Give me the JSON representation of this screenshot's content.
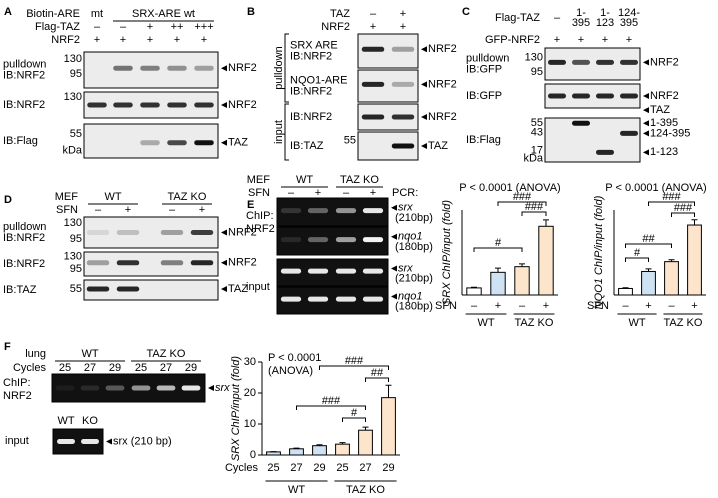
{
  "panels": {
    "a": {
      "label": "A",
      "rows": [
        {
          "name": "Biotin-ARE",
          "groups": [
            "mt",
            "SRX-ARE wt"
          ]
        },
        {
          "name": "Flag-TAZ",
          "lanes": [
            "–",
            "–",
            "+",
            "++",
            "+++"
          ]
        },
        {
          "name": "NRF2",
          "lanes": [
            "+",
            "+",
            "+",
            "+",
            "+"
          ]
        }
      ],
      "blots": [
        {
          "labels": [
            "pulldown",
            "IB:NRF2"
          ],
          "mw": [
            "130",
            "95"
          ],
          "marks": [
            "NRF2"
          ]
        },
        {
          "labels": [
            "IB:NRF2"
          ],
          "mw": [
            "130"
          ],
          "marks": [
            "NRF2"
          ]
        },
        {
          "labels": [
            "IB:Flag"
          ],
          "mw": [
            "55",
            "kDa"
          ],
          "marks": [
            "TAZ"
          ]
        }
      ]
    },
    "b": {
      "label": "B",
      "rows": [
        {
          "name": "TAZ",
          "lanes": [
            "–",
            "+"
          ]
        },
        {
          "name": "NRF2",
          "lanes": [
            "+",
            "+"
          ]
        }
      ],
      "side": [
        "pulldown",
        "input"
      ],
      "blots": [
        {
          "labels": [
            "SRX ARE",
            "IB:NRF2"
          ],
          "marks": [
            "NRF2"
          ]
        },
        {
          "labels": [
            "NQO1-ARE",
            "IB:NRF2"
          ],
          "marks": [
            "NRF2"
          ]
        },
        {
          "labels": [
            "IB:NRF2"
          ],
          "marks": [
            "NRF2"
          ]
        },
        {
          "labels": [
            "IB:TAZ"
          ],
          "mw": [
            "55"
          ],
          "marks": [
            "TAZ"
          ]
        }
      ]
    },
    "c": {
      "label": "C",
      "rows": [
        {
          "name": "Flag-TAZ",
          "lanes": [
            [
              "–"
            ],
            [
              "1-",
              "395"
            ],
            [
              "1-",
              "123"
            ],
            [
              "124-",
              "395"
            ]
          ]
        },
        {
          "name": "GFP-NRF2",
          "lanes": [
            "+",
            "+",
            "+",
            "+"
          ]
        }
      ],
      "blots": [
        {
          "labels": [
            "pulldown",
            "IB:GFP"
          ],
          "mw": [
            "130",
            "95"
          ],
          "marks": [
            "NRF2"
          ]
        },
        {
          "labels": [
            "IB:GFP"
          ],
          "marks": [
            "NRF2"
          ]
        },
        {
          "labels": [
            "IB:Flag"
          ],
          "mw": [
            "55",
            "43",
            "17",
            "kDa"
          ],
          "marks": [
            "TAZ",
            "1-395",
            "124-395",
            "1-123"
          ]
        }
      ]
    },
    "d": {
      "label": "D",
      "rows": [
        {
          "name": "MEF",
          "groups": [
            "WT",
            "TAZ KO"
          ]
        },
        {
          "name": "SFN",
          "lanes": [
            "–",
            "+",
            "–",
            "+"
          ]
        }
      ],
      "blots": [
        {
          "labels": [
            "pulldown",
            "IB:NRF2"
          ],
          "mw": [
            "130",
            "95"
          ],
          "marks": [
            "NRF2"
          ]
        },
        {
          "labels": [
            "IB:NRF2"
          ],
          "mw": [
            "130",
            "95"
          ],
          "marks": [
            "NRF2"
          ]
        },
        {
          "labels": [
            "IB:TAZ"
          ],
          "mw": [
            "55"
          ],
          "marks": [
            "TAZ"
          ]
        }
      ]
    },
    "e": {
      "label": "E",
      "rows": [
        {
          "name": "MEF",
          "groups": [
            "WT",
            "TAZ KO"
          ]
        },
        {
          "name": "SFN",
          "lanes": [
            "–",
            "+",
            "–",
            "+"
          ]
        }
      ],
      "side": [
        "PCR:",
        "ChIP:",
        "NRF2",
        "input"
      ],
      "blots": [
        {
          "marks": [
            "srx",
            "(210bp)"
          ]
        },
        {
          "marks": [
            "nqo1",
            "(180bp)"
          ]
        },
        {
          "marks": [
            "srx",
            "(210bp)"
          ]
        },
        {
          "marks": [
            "nqo1",
            "(180bp)"
          ]
        }
      ]
    },
    "f": {
      "label": "F",
      "rows": [
        {
          "name": "lung",
          "groups": [
            "WT",
            "TAZ KO"
          ]
        },
        {
          "name": "Cycles",
          "lanes": [
            "25",
            "27",
            "29",
            "25",
            "27",
            "29"
          ]
        }
      ],
      "side": [
        "ChIP:",
        "NRF2"
      ],
      "blots": [
        {
          "marks": [
            "srx"
          ]
        }
      ],
      "input": {
        "rows": [
          {
            "lanes": [
              "WT",
              "KO"
            ]
          }
        ],
        "side": [
          "input"
        ],
        "blots": [
          {
            "marks": [
              "srx (210 bp)"
            ]
          }
        ]
      }
    }
  },
  "chart_data": [
    {
      "type": "bar",
      "title": "P < 0.0001 (ANOVA)",
      "y_label": "SRX ChIP/input (fold)",
      "x_label": "SFN",
      "categories": [
        "–",
        "+",
        "–",
        "+"
      ],
      "groups": [
        "WT",
        "TAZ KO"
      ],
      "values": [
        1,
        3.2,
        4,
        9.7
      ],
      "errors": [
        0.1,
        0.6,
        0.4,
        0.9
      ],
      "colors": [
        "#ffffff",
        "#cfe2f3",
        "#fde5cc",
        "#fde5cc"
      ],
      "ylim": [
        0,
        12
      ],
      "annotations": [
        "#",
        "###",
        "###"
      ]
    },
    {
      "type": "bar",
      "title": "P < 0.0001 (ANOVA)",
      "y_label": "NQO1 ChIP/input (fold)",
      "x_label": "SFN",
      "categories": [
        "–",
        "+",
        "–",
        "+"
      ],
      "groups": [
        "WT",
        "TAZ KO"
      ],
      "values": [
        1,
        3.6,
        5.1,
        10.7
      ],
      "errors": [
        0.1,
        0.4,
        0.3,
        0.8
      ],
      "colors": [
        "#ffffff",
        "#cfe2f3",
        "#fde5cc",
        "#fde5cc"
      ],
      "ylim": [
        0,
        13
      ],
      "annotations": [
        "#",
        "##",
        "###",
        "###"
      ]
    },
    {
      "type": "bar",
      "title": [
        "P < 0.0001",
        "(ANOVA)"
      ],
      "y_label": "SRX ChIP/input (fold)",
      "x_label": "Cycles",
      "categories": [
        "25",
        "27",
        "29",
        "25",
        "27",
        "29"
      ],
      "groups": [
        "WT",
        "TAZ KO"
      ],
      "values": [
        1,
        2,
        3,
        3.5,
        8,
        18.5
      ],
      "errors": [
        0.1,
        0.2,
        0.3,
        0.5,
        1,
        4
      ],
      "colors": [
        "#cfe2f3",
        "#cfe2f3",
        "#cfe2f3",
        "#fde5cc",
        "#fde5cc",
        "#fde5cc"
      ],
      "ylim": [
        0,
        30
      ],
      "yticks": [
        0,
        10,
        20,
        30
      ],
      "annotations": [
        "#",
        "###",
        "##",
        "###"
      ]
    }
  ]
}
